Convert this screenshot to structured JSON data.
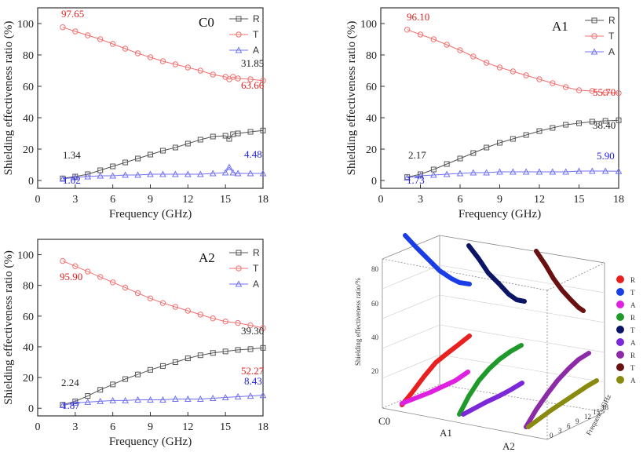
{
  "chart_data": [
    {
      "type": "line",
      "panel": "C0",
      "xlabel": "Frequency (GHz)",
      "ylabel": "Shielding effectiveness ratio (%)",
      "xlim": [
        0,
        18
      ],
      "ylim": [
        -5,
        110
      ],
      "xticks": [
        0,
        3,
        6,
        9,
        12,
        15,
        18
      ],
      "yticks": [
        0,
        20,
        40,
        60,
        80,
        100
      ],
      "x": [
        2,
        3,
        4,
        5,
        6,
        7,
        8,
        9,
        10,
        11,
        12,
        13,
        14,
        15,
        15.3,
        15.6,
        16,
        17,
        18
      ],
      "series": [
        {
          "name": "R",
          "color": "#555555",
          "marker": "square",
          "values": [
            1.34,
            2.5,
            4.0,
            6.5,
            9.0,
            11.5,
            14.0,
            16.5,
            19.0,
            21.0,
            23.5,
            26.0,
            28.0,
            28.5,
            26.5,
            29.5,
            30.0,
            31.0,
            31.85
          ]
        },
        {
          "name": "T",
          "color": "#f07070",
          "marker": "circle",
          "values": [
            97.65,
            95.0,
            92.5,
            90.0,
            87.0,
            84.0,
            81.0,
            78.5,
            76.0,
            74.0,
            72.0,
            70.0,
            67.5,
            66.0,
            64.5,
            66.0,
            65.0,
            64.5,
            63.66
          ]
        },
        {
          "name": "A",
          "color": "#7070f0",
          "marker": "triangle",
          "values": [
            1.02,
            2.0,
            2.5,
            3.0,
            3.0,
            3.5,
            3.5,
            4.0,
            4.0,
            4.0,
            4.0,
            4.0,
            4.5,
            5.0,
            8.5,
            5.0,
            4.5,
            4.5,
            4.48
          ]
        }
      ],
      "annotations": [
        {
          "text": "97.65",
          "color": "#e02020"
        },
        {
          "text": "63.66",
          "color": "#e02020"
        },
        {
          "text": "31.85",
          "color": "#222222"
        },
        {
          "text": "1.34",
          "color": "#222222"
        },
        {
          "text": "4.48",
          "color": "#2020e0"
        },
        {
          "text": "1.02",
          "color": "#2020e0"
        }
      ]
    },
    {
      "type": "line",
      "panel": "A1",
      "xlabel": "Frequency (GHz)",
      "ylabel": "Shielding effectiveness ratio (%)",
      "xlim": [
        0,
        18
      ],
      "ylim": [
        -5,
        110
      ],
      "xticks": [
        0,
        3,
        6,
        9,
        12,
        15,
        18
      ],
      "yticks": [
        0,
        20,
        40,
        60,
        80,
        100
      ],
      "x": [
        2,
        3,
        4,
        5,
        6,
        7,
        8,
        9,
        10,
        11,
        12,
        13,
        14,
        15,
        16,
        17,
        18
      ],
      "series": [
        {
          "name": "R",
          "color": "#555555",
          "marker": "square",
          "values": [
            2.17,
            4.0,
            7.0,
            10.5,
            14.0,
            17.5,
            21.0,
            24.0,
            26.5,
            29.0,
            31.5,
            33.5,
            35.5,
            36.5,
            37.5,
            38.0,
            38.4
          ]
        },
        {
          "name": "T",
          "color": "#f07070",
          "marker": "circle",
          "values": [
            96.1,
            93.0,
            90.0,
            86.5,
            83.0,
            79.0,
            75.0,
            72.0,
            69.5,
            67.0,
            64.5,
            62.0,
            59.5,
            57.5,
            57.0,
            56.0,
            55.7
          ]
        },
        {
          "name": "A",
          "color": "#7070f0",
          "marker": "triangle",
          "values": [
            1.73,
            3.0,
            3.5,
            4.0,
            4.5,
            5.0,
            5.0,
            5.5,
            5.5,
            5.5,
            5.5,
            5.5,
            5.5,
            6.0,
            6.0,
            6.0,
            5.9
          ]
        }
      ],
      "annotations": [
        {
          "text": "96.10",
          "color": "#e02020"
        },
        {
          "text": "55.70",
          "color": "#e02020"
        },
        {
          "text": "38.40",
          "color": "#222222"
        },
        {
          "text": "2.17",
          "color": "#222222"
        },
        {
          "text": "5.90",
          "color": "#2020e0"
        },
        {
          "text": "1.73",
          "color": "#2020e0"
        }
      ]
    },
    {
      "type": "line",
      "panel": "A2",
      "xlabel": "Frequency (GHz)",
      "ylabel": "Shielding effectiveness ratio (%)",
      "xlim": [
        0,
        18
      ],
      "ylim": [
        -5,
        110
      ],
      "xticks": [
        0,
        3,
        6,
        9,
        12,
        15,
        18
      ],
      "yticks": [
        0,
        20,
        40,
        60,
        80,
        100
      ],
      "x": [
        2,
        3,
        4,
        5,
        6,
        7,
        8,
        9,
        10,
        11,
        12,
        13,
        14,
        15,
        16,
        17,
        18
      ],
      "series": [
        {
          "name": "R",
          "color": "#555555",
          "marker": "square",
          "values": [
            2.24,
            4.5,
            8.0,
            12.0,
            15.5,
            19.0,
            22.0,
            25.0,
            27.5,
            30.0,
            32.5,
            34.5,
            36.0,
            37.0,
            38.0,
            38.5,
            39.3
          ]
        },
        {
          "name": "T",
          "color": "#f07070",
          "marker": "circle",
          "values": [
            95.9,
            92.5,
            89.0,
            85.5,
            82.0,
            78.5,
            75.0,
            71.5,
            68.5,
            66.0,
            63.5,
            61.0,
            58.5,
            56.5,
            55.5,
            54.0,
            52.27
          ]
        },
        {
          "name": "A",
          "color": "#7070f0",
          "marker": "triangle",
          "values": [
            1.87,
            3.5,
            4.0,
            4.5,
            5.0,
            5.0,
            5.5,
            5.5,
            5.5,
            6.0,
            6.0,
            6.0,
            6.5,
            7.0,
            7.5,
            8.0,
            8.43
          ]
        }
      ],
      "annotations": [
        {
          "text": "95.90",
          "color": "#e02020"
        },
        {
          "text": "52.27",
          "color": "#e02020"
        },
        {
          "text": "39.30",
          "color": "#222222"
        },
        {
          "text": "2.24",
          "color": "#222222"
        },
        {
          "text": "8.43",
          "color": "#2020e0"
        },
        {
          "text": "1.87",
          "color": "#2020e0"
        }
      ]
    },
    {
      "type": "line",
      "panel": "3d",
      "ylabel": "Shielding effectiveness ratio/%",
      "xlabel": "",
      "zlabel": "Frequency/GHz",
      "categories": [
        "C0",
        "A1",
        "A2"
      ],
      "zticks": [
        "0",
        "3",
        "6",
        "9",
        "12",
        "15",
        "18"
      ],
      "yticks": [
        "20",
        "40",
        "60",
        "80"
      ],
      "legend": [
        {
          "name": "R",
          "color": "#e82020"
        },
        {
          "name": "T",
          "color": "#1a3de8"
        },
        {
          "name": "A",
          "color": "#e020e0"
        },
        {
          "name": "R",
          "color": "#1f9a2a"
        },
        {
          "name": "T",
          "color": "#0c1466"
        },
        {
          "name": "A",
          "color": "#7a28d8"
        },
        {
          "name": "R",
          "color": "#8c2aa8"
        },
        {
          "name": "T",
          "color": "#6a1010"
        },
        {
          "name": "A",
          "color": "#8a8a10"
        }
      ]
    }
  ]
}
